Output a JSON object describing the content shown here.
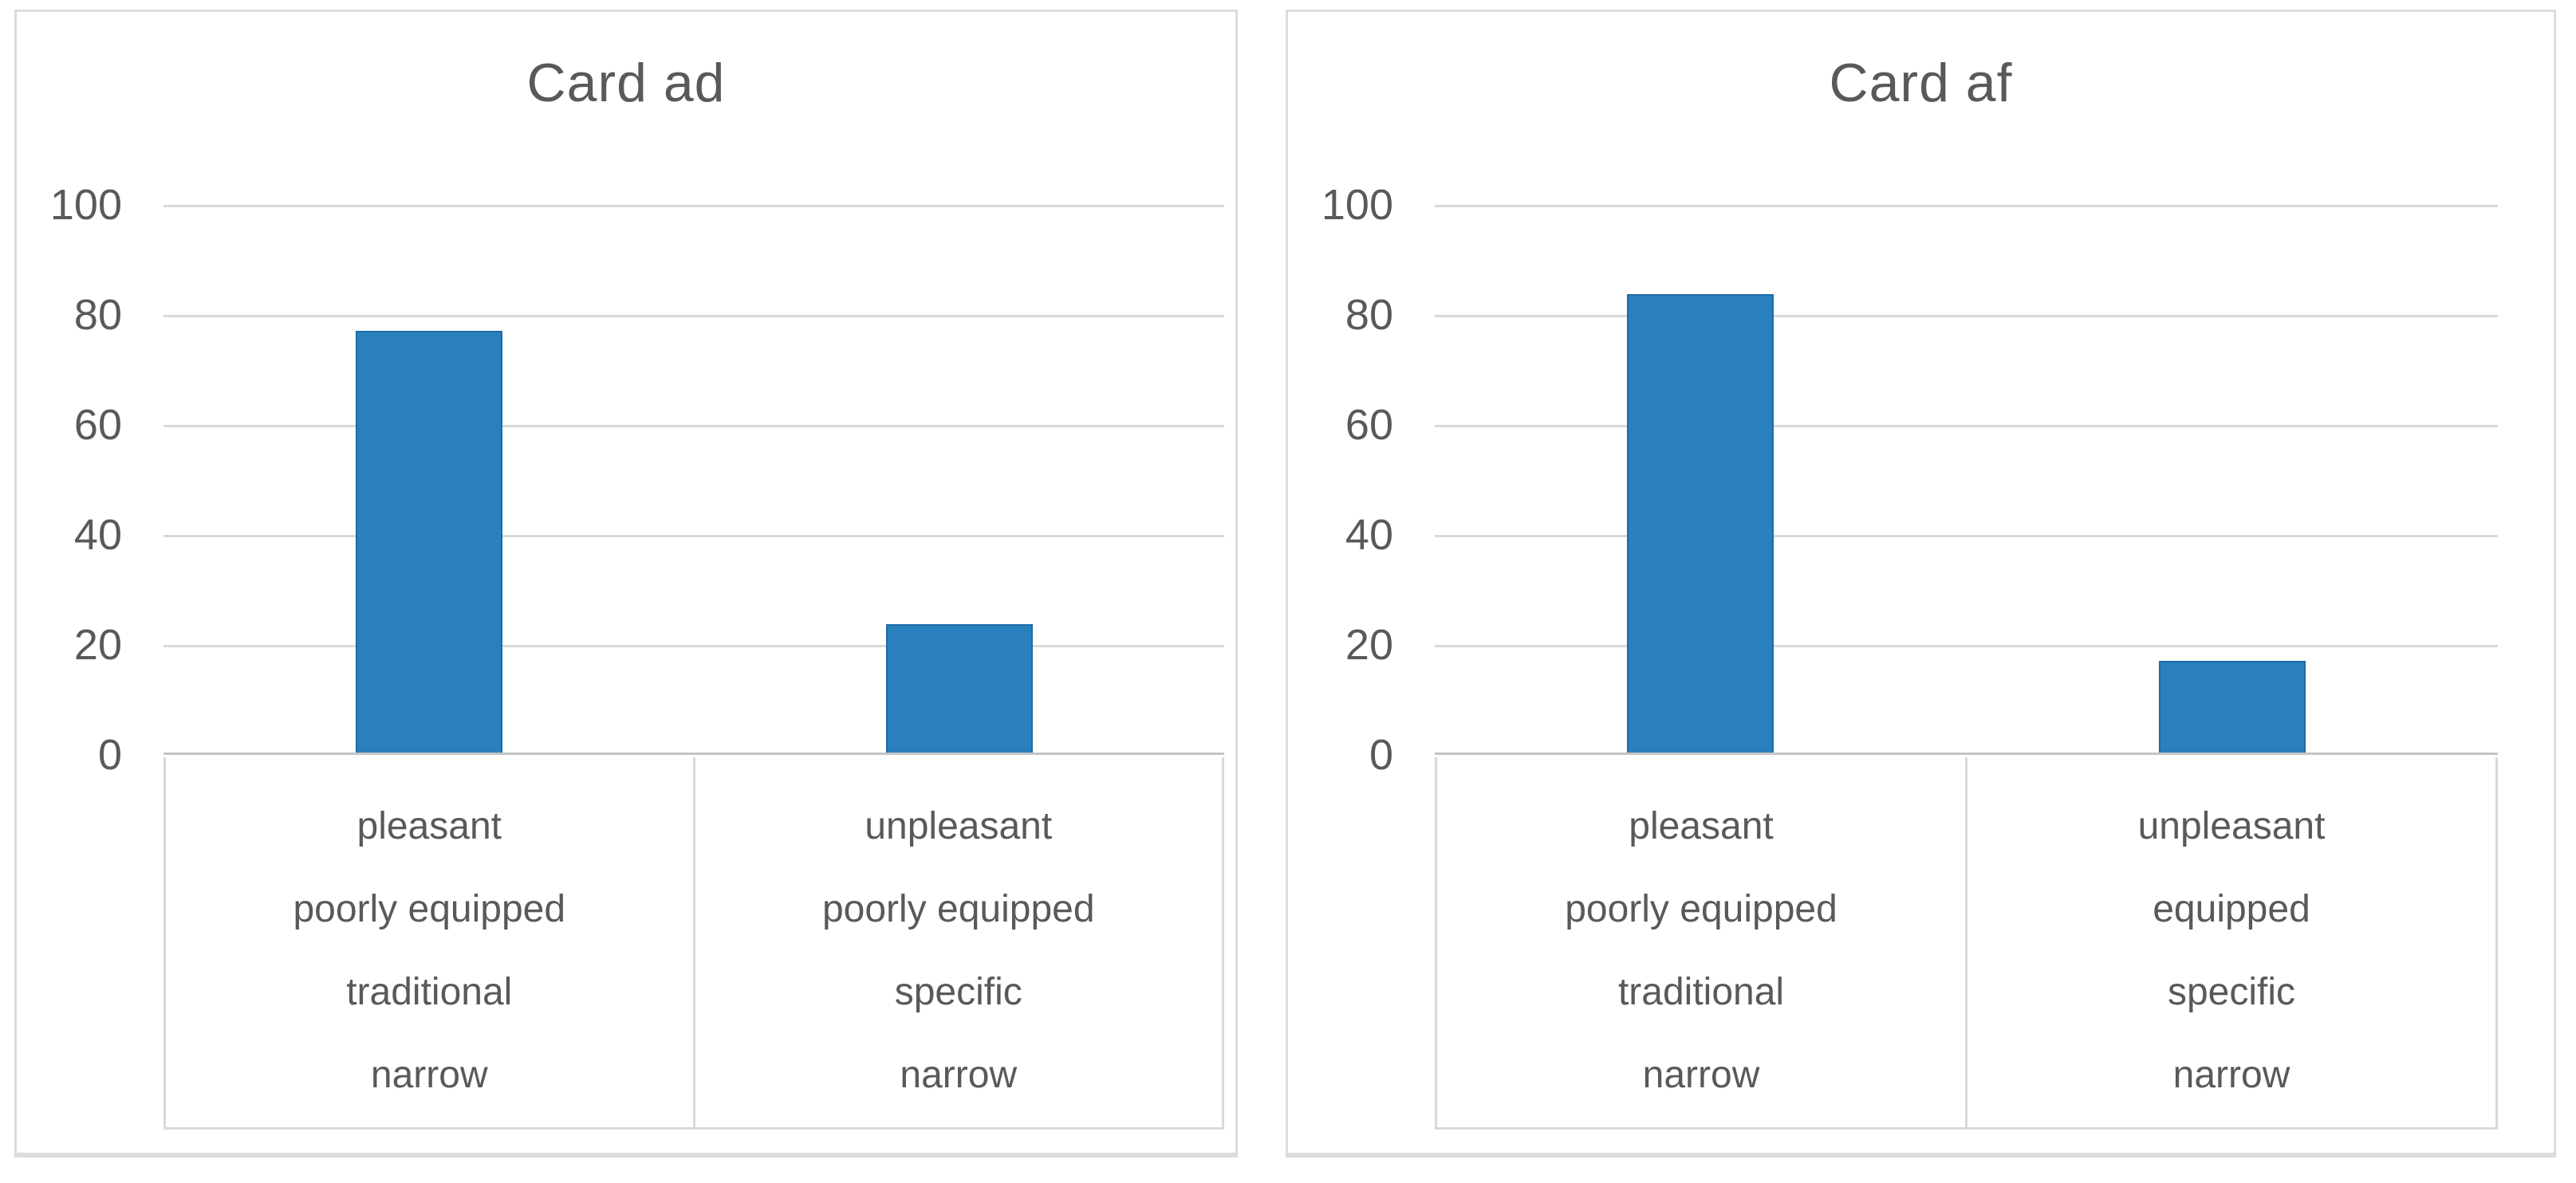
{
  "colors": {
    "bar": "#2980bc",
    "bar-border": "#1d6ba8",
    "grid": "#d9d9d9",
    "axis": "#c4c4c4",
    "text": "#595959",
    "panel-border": "#dcdcdc",
    "background": "#ffffff"
  },
  "chart_data": [
    {
      "type": "bar",
      "title": "Card ad",
      "categories": [
        [
          "pleasant",
          "poorly equipped",
          "traditional",
          "narrow"
        ],
        [
          "unpleasant",
          "poorly equipped",
          "specific",
          "narrow"
        ]
      ],
      "values": [
        76.7,
        23.3
      ],
      "xlabel": "",
      "ylabel": "",
      "ylim": [
        0,
        100
      ],
      "yticks": [
        100,
        80,
        60,
        40,
        20,
        0
      ],
      "grid": true,
      "legend_position": "none",
      "bar_color": "#2980bc"
    },
    {
      "type": "bar",
      "title": "Card af",
      "categories": [
        [
          "pleasant",
          "poorly equipped",
          "traditional",
          "narrow"
        ],
        [
          "unpleasant",
          "equipped",
          "specific",
          "narrow"
        ]
      ],
      "values": [
        83.3,
        16.7
      ],
      "xlabel": "",
      "ylabel": "",
      "ylim": [
        0,
        100
      ],
      "yticks": [
        100,
        80,
        60,
        40,
        20,
        0
      ],
      "grid": true,
      "legend_position": "none",
      "bar_color": "#2980bc"
    }
  ]
}
